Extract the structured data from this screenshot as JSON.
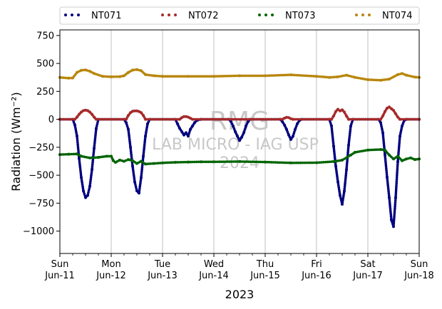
{
  "chart_data": {
    "type": "scatter",
    "xlabel": "2023",
    "ylabel": "Radiation (Wm⁻²)",
    "ylim": [
      -1200,
      800
    ],
    "xlim": [
      "2023-06-11T00:00",
      "2023-06-18T00:00"
    ],
    "y_ticks": [
      750,
      500,
      250,
      0,
      -250,
      -500,
      -750,
      -1000
    ],
    "y_tick_labels": [
      "750",
      "500",
      "250",
      "0",
      "−250",
      "−500",
      "−750",
      "−1000"
    ],
    "x_ticks": [
      {
        "date": "2023-06-11",
        "line1": "Sun",
        "line2": "Jun-11"
      },
      {
        "date": "2023-06-12",
        "line1": "Mon",
        "line2": "Jun-12"
      },
      {
        "date": "2023-06-13",
        "line1": "Tue",
        "line2": "Jun-13"
      },
      {
        "date": "2023-06-14",
        "line1": "Wed",
        "line2": "Jun-14"
      },
      {
        "date": "2023-06-15",
        "line1": "Thu",
        "line2": "Jun-15"
      },
      {
        "date": "2023-06-16",
        "line1": "Fri",
        "line2": "Jun-16"
      },
      {
        "date": "2023-06-17",
        "line1": "Sat",
        "line2": "Jun-17"
      },
      {
        "date": "2023-06-18",
        "line1": "Sun",
        "line2": "Jun-18"
      }
    ],
    "grid": "vertical",
    "legend_position": "top",
    "watermark": [
      "RMG",
      "LAB MICRO - IAG USP",
      "2024"
    ],
    "series": [
      {
        "name": "NT071",
        "color": "#00007f",
        "points": [
          [
            "2023-06-11T00:00",
            0
          ],
          [
            "2023-06-11T06:00",
            0
          ],
          [
            "2023-06-11T07:00",
            -50
          ],
          [
            "2023-06-11T08:00",
            -150
          ],
          [
            "2023-06-11T09:00",
            -350
          ],
          [
            "2023-06-11T10:00",
            -520
          ],
          [
            "2023-06-11T11:00",
            -640
          ],
          [
            "2023-06-11T12:00",
            -700
          ],
          [
            "2023-06-11T13:00",
            -680
          ],
          [
            "2023-06-11T14:00",
            -600
          ],
          [
            "2023-06-11T15:00",
            -450
          ],
          [
            "2023-06-11T16:00",
            -260
          ],
          [
            "2023-06-11T17:00",
            -80
          ],
          [
            "2023-06-11T18:00",
            0
          ],
          [
            "2023-06-12T06:00",
            0
          ],
          [
            "2023-06-12T07:00",
            -30
          ],
          [
            "2023-06-12T08:00",
            -90
          ],
          [
            "2023-06-12T09:00",
            -250
          ],
          [
            "2023-06-12T10:00",
            -420
          ],
          [
            "2023-06-12T11:00",
            -560
          ],
          [
            "2023-06-12T12:00",
            -640
          ],
          [
            "2023-06-12T13:00",
            -660
          ],
          [
            "2023-06-12T14:00",
            -520
          ],
          [
            "2023-06-12T15:00",
            -330
          ],
          [
            "2023-06-12T16:00",
            -150
          ],
          [
            "2023-06-12T17:00",
            -40
          ],
          [
            "2023-06-12T18:00",
            0
          ],
          [
            "2023-06-13T06:00",
            0
          ],
          [
            "2023-06-13T07:00",
            -40
          ],
          [
            "2023-06-13T08:00",
            -80
          ],
          [
            "2023-06-13T09:00",
            -110
          ],
          [
            "2023-06-13T10:00",
            -140
          ],
          [
            "2023-06-13T11:00",
            -120
          ],
          [
            "2023-06-13T12:00",
            -150
          ],
          [
            "2023-06-13T13:00",
            -90
          ],
          [
            "2023-06-13T14:00",
            -60
          ],
          [
            "2023-06-13T15:00",
            -30
          ],
          [
            "2023-06-13T16:00",
            -10
          ],
          [
            "2023-06-13T18:00",
            0
          ],
          [
            "2023-06-14T07:00",
            0
          ],
          [
            "2023-06-14T08:00",
            -20
          ],
          [
            "2023-06-14T09:00",
            -60
          ],
          [
            "2023-06-14T10:00",
            -110
          ],
          [
            "2023-06-14T11:00",
            -150
          ],
          [
            "2023-06-14T12:00",
            -190
          ],
          [
            "2023-06-14T13:00",
            -160
          ],
          [
            "2023-06-14T14:00",
            -120
          ],
          [
            "2023-06-14T15:00",
            -60
          ],
          [
            "2023-06-14T16:00",
            -20
          ],
          [
            "2023-06-14T17:00",
            0
          ],
          [
            "2023-06-15T07:00",
            0
          ],
          [
            "2023-06-15T08:00",
            -20
          ],
          [
            "2023-06-15T09:00",
            -50
          ],
          [
            "2023-06-15T10:00",
            -90
          ],
          [
            "2023-06-15T11:00",
            -140
          ],
          [
            "2023-06-15T12:00",
            -180
          ],
          [
            "2023-06-15T13:00",
            -150
          ],
          [
            "2023-06-15T14:00",
            -90
          ],
          [
            "2023-06-15T15:00",
            -40
          ],
          [
            "2023-06-15T16:00",
            -10
          ],
          [
            "2023-06-15T17:00",
            0
          ],
          [
            "2023-06-16T06:00",
            0
          ],
          [
            "2023-06-16T07:00",
            -60
          ],
          [
            "2023-06-16T08:00",
            -240
          ],
          [
            "2023-06-16T09:00",
            -420
          ],
          [
            "2023-06-16T10:00",
            -560
          ],
          [
            "2023-06-16T11:00",
            -680
          ],
          [
            "2023-06-16T12:00",
            -760
          ],
          [
            "2023-06-16T13:00",
            -640
          ],
          [
            "2023-06-16T14:00",
            -450
          ],
          [
            "2023-06-16T15:00",
            -230
          ],
          [
            "2023-06-16T16:00",
            -60
          ],
          [
            "2023-06-16T17:00",
            0
          ],
          [
            "2023-06-17T05:00",
            0
          ],
          [
            "2023-06-17T06:00",
            -30
          ],
          [
            "2023-06-17T07:00",
            -120
          ],
          [
            "2023-06-17T08:00",
            -320
          ],
          [
            "2023-06-17T09:00",
            -520
          ],
          [
            "2023-06-17T10:00",
            -700
          ],
          [
            "2023-06-17T11:00",
            -900
          ],
          [
            "2023-06-17T12:00",
            -960
          ],
          [
            "2023-06-17T13:00",
            -700
          ],
          [
            "2023-06-17T14:00",
            -380
          ],
          [
            "2023-06-17T15:00",
            -150
          ],
          [
            "2023-06-17T16:00",
            -60
          ],
          [
            "2023-06-17T17:00",
            -10
          ],
          [
            "2023-06-17T18:00",
            0
          ],
          [
            "2023-06-18T00:00",
            0
          ]
        ]
      },
      {
        "name": "NT072",
        "color": "#a52a2a",
        "points": [
          [
            "2023-06-11T00:00",
            0
          ],
          [
            "2023-06-11T07:00",
            0
          ],
          [
            "2023-06-11T08:00",
            20
          ],
          [
            "2023-06-11T09:00",
            45
          ],
          [
            "2023-06-11T10:00",
            65
          ],
          [
            "2023-06-11T11:00",
            78
          ],
          [
            "2023-06-11T12:00",
            82
          ],
          [
            "2023-06-11T13:00",
            78
          ],
          [
            "2023-06-11T14:00",
            65
          ],
          [
            "2023-06-11T15:00",
            45
          ],
          [
            "2023-06-11T16:00",
            20
          ],
          [
            "2023-06-11T17:00",
            0
          ],
          [
            "2023-06-12T07:00",
            0
          ],
          [
            "2023-06-12T08:00",
            35
          ],
          [
            "2023-06-12T09:00",
            60
          ],
          [
            "2023-06-12T10:00",
            72
          ],
          [
            "2023-06-12T11:00",
            75
          ],
          [
            "2023-06-12T12:00",
            75
          ],
          [
            "2023-06-12T13:00",
            70
          ],
          [
            "2023-06-12T14:00",
            60
          ],
          [
            "2023-06-12T15:00",
            35
          ],
          [
            "2023-06-12T16:00",
            0
          ],
          [
            "2023-06-13T08:00",
            0
          ],
          [
            "2023-06-13T09:00",
            15
          ],
          [
            "2023-06-13T10:00",
            25
          ],
          [
            "2023-06-13T11:00",
            25
          ],
          [
            "2023-06-13T12:00",
            20
          ],
          [
            "2023-06-13T13:00",
            10
          ],
          [
            "2023-06-13T14:00",
            0
          ],
          [
            "2023-06-15T08:00",
            0
          ],
          [
            "2023-06-15T09:00",
            10
          ],
          [
            "2023-06-15T10:00",
            18
          ],
          [
            "2023-06-15T11:00",
            15
          ],
          [
            "2023-06-15T12:00",
            5
          ],
          [
            "2023-06-15T13:00",
            0
          ],
          [
            "2023-06-16T07:00",
            0
          ],
          [
            "2023-06-16T08:00",
            30
          ],
          [
            "2023-06-16T09:00",
            70
          ],
          [
            "2023-06-16T10:00",
            90
          ],
          [
            "2023-06-16T11:00",
            75
          ],
          [
            "2023-06-16T12:00",
            85
          ],
          [
            "2023-06-16T13:00",
            65
          ],
          [
            "2023-06-16T14:00",
            30
          ],
          [
            "2023-06-16T15:00",
            0
          ],
          [
            "2023-06-17T06:00",
            0
          ],
          [
            "2023-06-17T07:00",
            30
          ],
          [
            "2023-06-17T08:00",
            70
          ],
          [
            "2023-06-17T09:00",
            100
          ],
          [
            "2023-06-17T10:00",
            110
          ],
          [
            "2023-06-17T11:00",
            95
          ],
          [
            "2023-06-17T12:00",
            80
          ],
          [
            "2023-06-17T13:00",
            50
          ],
          [
            "2023-06-17T14:00",
            20
          ],
          [
            "2023-06-17T15:00",
            0
          ],
          [
            "2023-06-18T00:00",
            0
          ]
        ]
      },
      {
        "name": "NT073",
        "color": "#006400",
        "points": [
          [
            "2023-06-11T00:00",
            -315
          ],
          [
            "2023-06-11T04:00",
            -312
          ],
          [
            "2023-06-11T08:00",
            -310
          ],
          [
            "2023-06-11T10:00",
            -330
          ],
          [
            "2023-06-11T14:00",
            -345
          ],
          [
            "2023-06-11T18:00",
            -340
          ],
          [
            "2023-06-11T22:00",
            -330
          ],
          [
            "2023-06-12T00:00",
            -330
          ],
          [
            "2023-06-12T01:00",
            -370
          ],
          [
            "2023-06-12T02:00",
            -385
          ],
          [
            "2023-06-12T04:00",
            -365
          ],
          [
            "2023-06-12T06:00",
            -375
          ],
          [
            "2023-06-12T08:00",
            -360
          ],
          [
            "2023-06-12T10:00",
            -370
          ],
          [
            "2023-06-12T12:00",
            -395
          ],
          [
            "2023-06-12T14:00",
            -375
          ],
          [
            "2023-06-12T16:00",
            -400
          ],
          [
            "2023-06-12T20:00",
            -395
          ],
          [
            "2023-06-13T00:00",
            -390
          ],
          [
            "2023-06-13T06:00",
            -385
          ],
          [
            "2023-06-13T12:00",
            -382
          ],
          [
            "2023-06-13T18:00",
            -380
          ],
          [
            "2023-06-14T00:00",
            -380
          ],
          [
            "2023-06-14T12:00",
            -378
          ],
          [
            "2023-06-15T00:00",
            -382
          ],
          [
            "2023-06-15T12:00",
            -390
          ],
          [
            "2023-06-16T00:00",
            -388
          ],
          [
            "2023-06-16T08:00",
            -378
          ],
          [
            "2023-06-16T12:00",
            -365
          ],
          [
            "2023-06-16T16:00",
            -320
          ],
          [
            "2023-06-16T18:00",
            -295
          ],
          [
            "2023-06-17T00:00",
            -275
          ],
          [
            "2023-06-17T06:00",
            -270
          ],
          [
            "2023-06-17T08:00",
            -275
          ],
          [
            "2023-06-17T10:00",
            -320
          ],
          [
            "2023-06-17T12:00",
            -355
          ],
          [
            "2023-06-17T14:00",
            -330
          ],
          [
            "2023-06-17T16:00",
            -370
          ],
          [
            "2023-06-17T18:00",
            -355
          ],
          [
            "2023-06-17T20:00",
            -345
          ],
          [
            "2023-06-17T22:00",
            -360
          ],
          [
            "2023-06-18T00:00",
            -355
          ]
        ]
      },
      {
        "name": "NT074",
        "color": "#b8860b",
        "points": [
          [
            "2023-06-11T00:00",
            375
          ],
          [
            "2023-06-11T04:00",
            368
          ],
          [
            "2023-06-11T06:00",
            370
          ],
          [
            "2023-06-11T08:00",
            420
          ],
          [
            "2023-06-11T10:00",
            438
          ],
          [
            "2023-06-11T12:00",
            442
          ],
          [
            "2023-06-11T14:00",
            430
          ],
          [
            "2023-06-11T16:00",
            410
          ],
          [
            "2023-06-11T20:00",
            385
          ],
          [
            "2023-06-12T00:00",
            380
          ],
          [
            "2023-06-12T04:00",
            382
          ],
          [
            "2023-06-12T06:00",
            390
          ],
          [
            "2023-06-12T08:00",
            420
          ],
          [
            "2023-06-12T10:00",
            440
          ],
          [
            "2023-06-12T12:00",
            445
          ],
          [
            "2023-06-12T14:00",
            435
          ],
          [
            "2023-06-12T16:00",
            400
          ],
          [
            "2023-06-12T20:00",
            390
          ],
          [
            "2023-06-13T00:00",
            385
          ],
          [
            "2023-06-13T12:00",
            385
          ],
          [
            "2023-06-14T00:00",
            385
          ],
          [
            "2023-06-14T12:00",
            390
          ],
          [
            "2023-06-15T00:00",
            390
          ],
          [
            "2023-06-15T12:00",
            398
          ],
          [
            "2023-06-16T00:00",
            385
          ],
          [
            "2023-06-16T06:00",
            375
          ],
          [
            "2023-06-16T10:00",
            380
          ],
          [
            "2023-06-16T14:00",
            395
          ],
          [
            "2023-06-16T18:00",
            375
          ],
          [
            "2023-06-17T00:00",
            355
          ],
          [
            "2023-06-17T06:00",
            350
          ],
          [
            "2023-06-17T10:00",
            360
          ],
          [
            "2023-06-17T14:00",
            400
          ],
          [
            "2023-06-17T16:00",
            410
          ],
          [
            "2023-06-17T18:00",
            395
          ],
          [
            "2023-06-17T22:00",
            378
          ],
          [
            "2023-06-18T00:00",
            375
          ]
        ]
      }
    ]
  }
}
